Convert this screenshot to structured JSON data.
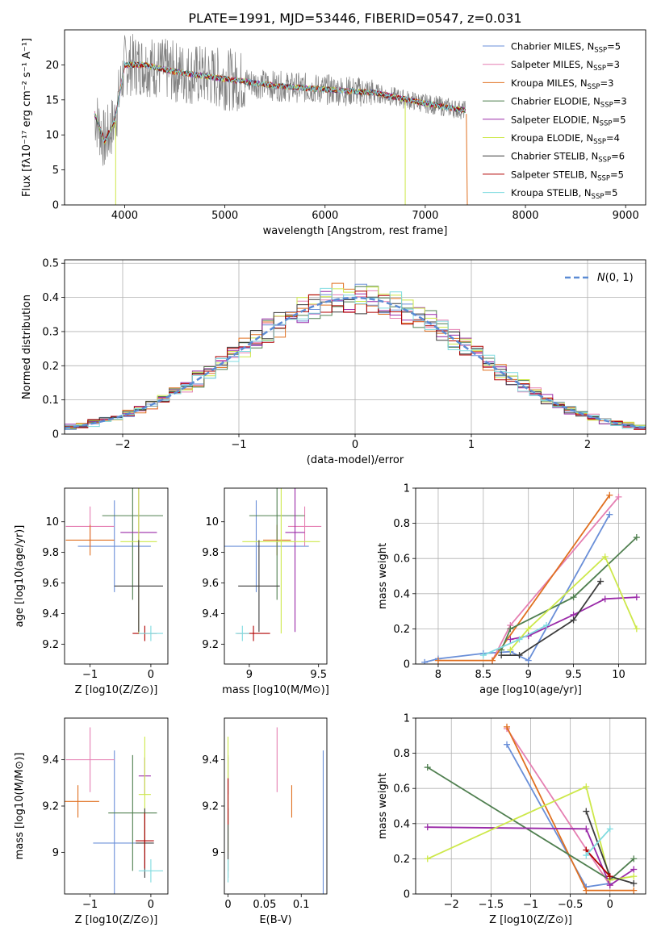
{
  "figure_title": "PLATE=1991, MJD=53446, FIBERID=0547, z=0.031",
  "series_legend": [
    {
      "name": "Chabrier MILES",
      "nssp": "5",
      "color": "#6a8fd8"
    },
    {
      "name": "Salpeter MILES",
      "nssp": "3",
      "color": "#e57fb2"
    },
    {
      "name": "Kroupa MILES",
      "nssp": "3",
      "color": "#e07020"
    },
    {
      "name": "Chabrier ELODIE",
      "nssp": "3",
      "color": "#4f7f4f"
    },
    {
      "name": "Salpeter ELODIE",
      "nssp": "5",
      "color": "#9a2aa8"
    },
    {
      "name": "Kroupa ELODIE",
      "nssp": "4",
      "color": "#cde84a"
    },
    {
      "name": "Chabrier STELIB",
      "nssp": "6",
      "color": "#3c3c3c"
    },
    {
      "name": "Salpeter STELIB",
      "nssp": "5",
      "color": "#b00000"
    },
    {
      "name": "Kroupa STELIB",
      "nssp": "5",
      "color": "#7fdbe0"
    }
  ],
  "nssp_label": "N",
  "nssp_sub": "SSP",
  "chart_data": [
    {
      "id": "spectrum",
      "type": "line",
      "xlabel": "wavelength [Angstrom, rest frame]",
      "ylabel": "Flux [fλ10⁻¹⁷ erg cm⁻² s⁻¹ A⁻¹]",
      "xlim": [
        3400,
        9200
      ],
      "ylim": [
        0,
        25
      ],
      "xticks": [
        4000,
        5000,
        6000,
        7000,
        8000,
        9000
      ],
      "yticks": [
        0,
        5,
        10,
        15,
        20
      ],
      "data_color": "#808080",
      "data_range": [
        3700,
        7400
      ],
      "model_points": [
        [
          3700,
          13
        ],
        [
          3800,
          9
        ],
        [
          3900,
          12
        ],
        [
          4000,
          20
        ],
        [
          4200,
          20
        ],
        [
          4500,
          19
        ],
        [
          5000,
          18
        ],
        [
          5500,
          17
        ],
        [
          6000,
          16.5
        ],
        [
          6500,
          16
        ],
        [
          7000,
          14.5
        ],
        [
          7400,
          13.5
        ]
      ]
    },
    {
      "id": "residuals",
      "type": "line",
      "xlabel": "(data-model)/error",
      "ylabel": "Normed distribution",
      "xlim": [
        -2.5,
        2.5
      ],
      "ylim": [
        0,
        0.51
      ],
      "xticks": [
        -2,
        -1,
        0,
        1,
        2
      ],
      "yticks": [
        0.0,
        0.1,
        0.2,
        0.3,
        0.4,
        0.5
      ],
      "grid": true,
      "legend": "N(0,1)",
      "legend_color": "#5b8bd4"
    },
    {
      "id": "age_vs_Z",
      "type": "scatter",
      "xlabel": "Z [log10(Z/Z⊙)]",
      "ylabel": "age  [log10(age/yr)]",
      "xlim": [
        -1.42,
        0.28
      ],
      "ylim": [
        9.07,
        10.22
      ],
      "xticks": [
        -1,
        0
      ],
      "yticks": [
        9.2,
        9.4,
        9.6,
        9.8,
        10.0
      ],
      "points": [
        {
          "x": -0.6,
          "xerr": 0.6,
          "y": 9.84,
          "yerr": 0.3
        },
        {
          "x": -1.0,
          "xerr": 0.4,
          "y": 9.97,
          "yerr": 0.13
        },
        {
          "x": -1.0,
          "xerr": 0.4,
          "y": 9.88,
          "yerr": 0.1
        },
        {
          "x": -0.3,
          "xerr": 0.5,
          "y": 10.04,
          "yerr": 0.55
        },
        {
          "x": -0.2,
          "xerr": 0.3,
          "y": 9.93,
          "yerr": 0.65
        },
        {
          "x": -0.2,
          "xerr": 0.3,
          "y": 9.87,
          "yerr": 0.6
        },
        {
          "x": -0.2,
          "xerr": 0.4,
          "y": 9.58,
          "yerr": 0.3
        },
        {
          "x": -0.1,
          "xerr": 0.2,
          "y": 9.27,
          "yerr": 0.05
        },
        {
          "x": 0.0,
          "xerr": 0.2,
          "y": 9.27,
          "yerr": 0.05
        }
      ]
    },
    {
      "id": "age_vs_mass",
      "type": "scatter",
      "xlabel": "mass [log10(M/M⊙)]",
      "ylabel": "",
      "xlim": [
        8.82,
        9.56
      ],
      "ylim": [
        9.07,
        10.22
      ],
      "xticks": [
        9.0,
        9.5
      ],
      "yticks": [
        9.2,
        9.4,
        9.6,
        9.8,
        10.0
      ],
      "points": [
        {
          "x": 9.05,
          "xerr": 0.38,
          "y": 9.84,
          "yerr": 0.3
        },
        {
          "x": 9.4,
          "xerr": 0.12,
          "y": 9.97,
          "yerr": 0.13
        },
        {
          "x": 9.2,
          "xerr": 0.1,
          "y": 9.88,
          "yerr": 0.1
        },
        {
          "x": 9.2,
          "xerr": 0.2,
          "y": 10.04,
          "yerr": 0.55
        },
        {
          "x": 9.33,
          "xerr": 0.07,
          "y": 9.93,
          "yerr": 0.65
        },
        {
          "x": 9.23,
          "xerr": 0.28,
          "y": 9.87,
          "yerr": 0.6
        },
        {
          "x": 9.07,
          "xerr": 0.15,
          "y": 9.58,
          "yerr": 0.3
        },
        {
          "x": 9.03,
          "xerr": 0.12,
          "y": 9.27,
          "yerr": 0.05
        },
        {
          "x": 8.95,
          "xerr": 0.05,
          "y": 9.27,
          "yerr": 0.05
        }
      ]
    },
    {
      "id": "weight_vs_age",
      "type": "line",
      "xlabel": "age  [log10(age/yr)]",
      "ylabel": "mass weight",
      "xlim": [
        7.75,
        10.3
      ],
      "ylim": [
        0,
        1
      ],
      "xticks": [
        8.0,
        8.5,
        9.0,
        9.5,
        10.0
      ],
      "yticks": [
        0.0,
        0.2,
        0.4,
        0.6,
        0.8,
        1.0
      ],
      "grid": true,
      "series": [
        {
          "name": "Chabrier MILES",
          "x": [
            7.85,
            8.0,
            8.5,
            8.8,
            9.0,
            9.9
          ],
          "y": [
            0.01,
            0.03,
            0.06,
            0.07,
            0.02,
            0.85
          ]
        },
        {
          "name": "Salpeter MILES",
          "x": [
            8.6,
            8.8,
            10.0
          ],
          "y": [
            0.02,
            0.22,
            0.95
          ]
        },
        {
          "name": "Kroupa MILES",
          "x": [
            8.0,
            8.6,
            9.9
          ],
          "y": [
            0.02,
            0.02,
            0.96
          ]
        },
        {
          "name": "Chabrier ELODIE",
          "x": [
            8.7,
            8.8,
            9.5,
            10.2
          ],
          "y": [
            0.08,
            0.2,
            0.38,
            0.72
          ]
        },
        {
          "name": "Salpeter ELODIE",
          "x": [
            8.8,
            9.0,
            9.5,
            9.85,
            10.2
          ],
          "y": [
            0.14,
            0.16,
            0.28,
            0.37,
            0.38
          ]
        },
        {
          "name": "Kroupa ELODIE",
          "x": [
            8.8,
            9.0,
            9.85,
            10.2
          ],
          "y": [
            0.08,
            0.2,
            0.61,
            0.2
          ]
        },
        {
          "name": "Chabrier STELIB",
          "x": [
            8.7,
            8.9,
            9.5,
            9.8
          ],
          "y": [
            0.05,
            0.05,
            0.25,
            0.47
          ]
        },
        {
          "name": "Kroupa STELIB",
          "x": [
            8.5,
            8.9,
            9.2
          ],
          "y": [
            0.05,
            0.14,
            0.22
          ]
        }
      ]
    },
    {
      "id": "mass_vs_Z",
      "type": "scatter",
      "xlabel": "Z [log10(Z/Z⊙)]",
      "ylabel": "mass [log10(M/M⊙)]",
      "xlim": [
        -1.42,
        0.28
      ],
      "ylim": [
        8.82,
        9.58
      ],
      "xticks": [
        -1,
        0
      ],
      "yticks": [
        9.0,
        9.2,
        9.4
      ],
      "points": [
        {
          "x": -0.6,
          "xerr": 0.35,
          "y": 9.04,
          "yerr": 0.4
        },
        {
          "x": -1.0,
          "xerr": 0.4,
          "y": 9.4,
          "yerr": 0.14
        },
        {
          "x": -1.2,
          "xerr": 0.35,
          "y": 9.22,
          "yerr": 0.07
        },
        {
          "x": -0.3,
          "xerr": 0.4,
          "y": 9.17,
          "yerr": 0.25
        },
        {
          "x": -0.1,
          "xerr": 0.1,
          "y": 9.33,
          "yerr": 0.08
        },
        {
          "x": -0.1,
          "xerr": 0.1,
          "y": 9.25,
          "yerr": 0.25
        },
        {
          "x": -0.1,
          "xerr": 0.15,
          "y": 9.04,
          "yerr": 0.15
        },
        {
          "x": -0.1,
          "xerr": 0.15,
          "y": 9.05,
          "yerr": 0.12
        },
        {
          "x": 0.0,
          "xerr": 0.2,
          "y": 8.92,
          "yerr": 0.05
        }
      ]
    },
    {
      "id": "mass_vs_EBV",
      "type": "scatter",
      "xlabel": "E(B-V)",
      "ylabel": "",
      "xlim": [
        -0.005,
        0.135
      ],
      "ylim": [
        8.82,
        9.58
      ],
      "xticks": [
        0.0,
        0.05,
        0.1
      ],
      "yticks": [
        9.0,
        9.2,
        9.4
      ],
      "points": [
        {
          "x": 0.13,
          "xerr": 0.0,
          "y": 9.04,
          "yerr": 0.4
        },
        {
          "x": 0.067,
          "xerr": 0.0,
          "y": 9.4,
          "yerr": 0.14
        },
        {
          "x": 0.087,
          "xerr": 0.0,
          "y": 9.22,
          "yerr": 0.07
        },
        {
          "x": 0.0,
          "xerr": 0.0,
          "y": 9.17,
          "yerr": 0.25
        },
        {
          "x": 0.0,
          "xerr": 0.0,
          "y": 9.33,
          "yerr": 0.08
        },
        {
          "x": 0.0,
          "xerr": 0.0,
          "y": 9.25,
          "yerr": 0.25
        },
        {
          "x": 0.0,
          "xerr": 0.0,
          "y": 9.04,
          "yerr": 0.15
        },
        {
          "x": 0.0,
          "xerr": 0.0,
          "y": 9.22,
          "yerr": 0.1
        },
        {
          "x": 0.0,
          "xerr": 0.0,
          "y": 8.92,
          "yerr": 0.05
        }
      ]
    },
    {
      "id": "weight_vs_Z",
      "type": "line",
      "xlabel": "Z [log10(Z/Z⊙)]",
      "ylabel": "mass weight",
      "xlim": [
        -2.45,
        0.45
      ],
      "ylim": [
        0,
        1
      ],
      "xticks": [
        -2.0,
        -1.5,
        -1.0,
        -0.5,
        0.0
      ],
      "yticks": [
        0.0,
        0.2,
        0.4,
        0.6,
        0.8,
        1.0
      ],
      "grid": true,
      "series": [
        {
          "name": "Chabrier MILES",
          "x": [
            -1.3,
            -0.3,
            0.0
          ],
          "y": [
            0.85,
            0.04,
            0.06
          ]
        },
        {
          "name": "Salpeter MILES",
          "x": [
            -1.3,
            0.0
          ],
          "y": [
            0.94,
            0.05
          ]
        },
        {
          "name": "Kroupa MILES",
          "x": [
            -1.3,
            -0.3,
            0.3
          ],
          "y": [
            0.95,
            0.02,
            0.02
          ]
        },
        {
          "name": "Chabrier ELODIE",
          "x": [
            -2.3,
            0.0,
            0.3
          ],
          "y": [
            0.72,
            0.08,
            0.2
          ]
        },
        {
          "name": "Salpeter ELODIE",
          "x": [
            -2.3,
            -0.3,
            0.0,
            0.3
          ],
          "y": [
            0.38,
            0.37,
            0.05,
            0.14
          ]
        },
        {
          "name": "Kroupa ELODIE",
          "x": [
            -2.3,
            -0.3,
            0.0,
            0.3
          ],
          "y": [
            0.2,
            0.61,
            0.08,
            0.1
          ]
        },
        {
          "name": "Chabrier STELIB",
          "x": [
            -0.3,
            0.0,
            0.3
          ],
          "y": [
            0.47,
            0.1,
            0.06
          ]
        },
        {
          "name": "Salpeter STELIB",
          "x": [
            -0.3,
            0.0
          ],
          "y": [
            0.25,
            0.1
          ]
        },
        {
          "name": "Kroupa STELIB",
          "x": [
            -0.3,
            0.0
          ],
          "y": [
            0.22,
            0.37
          ]
        }
      ]
    }
  ]
}
